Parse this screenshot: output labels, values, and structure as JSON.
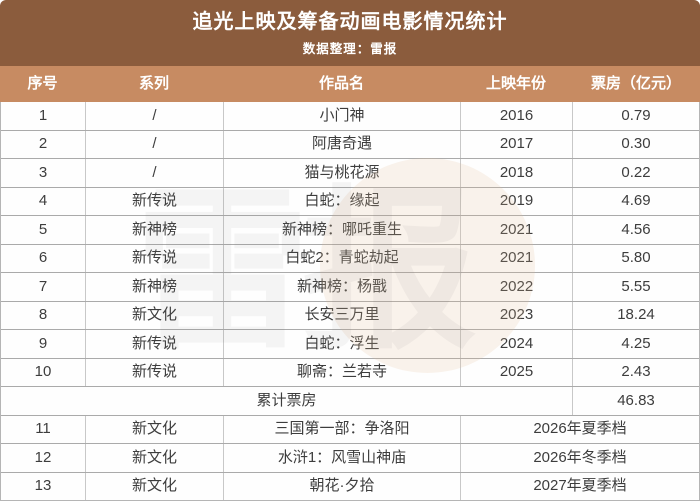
{
  "title": "追光上映及筹备动画电影情况统计",
  "subtitle": "数据整理：雷报",
  "colors": {
    "title_bg": "#8b5c3d",
    "header_bg": "#c78b62",
    "header_text": "#ffffff",
    "body_text": "#3d3d3d",
    "border": "#b5b5b5"
  },
  "columns": [
    "序号",
    "系列",
    "作品名",
    "上映年份",
    "票房（亿元）"
  ],
  "released_rows": [
    {
      "no": "1",
      "series": "/",
      "work": "小门神",
      "year": "2016",
      "box_office": "0.79"
    },
    {
      "no": "2",
      "series": "/",
      "work": "阿唐奇遇",
      "year": "2017",
      "box_office": "0.30"
    },
    {
      "no": "3",
      "series": "/",
      "work": "猫与桃花源",
      "year": "2018",
      "box_office": "0.22"
    },
    {
      "no": "4",
      "series": "新传说",
      "work": "白蛇：缘起",
      "year": "2019",
      "box_office": "4.69"
    },
    {
      "no": "5",
      "series": "新神榜",
      "work": "新神榜：哪吒重生",
      "year": "2021",
      "box_office": "4.56"
    },
    {
      "no": "6",
      "series": "新传说",
      "work": "白蛇2：青蛇劫起",
      "year": "2021",
      "box_office": "5.80"
    },
    {
      "no": "7",
      "series": "新神榜",
      "work": "新神榜：杨戬",
      "year": "2022",
      "box_office": "5.55"
    },
    {
      "no": "8",
      "series": "新文化",
      "work": "长安三万里",
      "year": "2023",
      "box_office": "18.24"
    },
    {
      "no": "9",
      "series": "新传说",
      "work": "白蛇：浮生",
      "year": "2024",
      "box_office": "4.25"
    },
    {
      "no": "10",
      "series": "新传说",
      "work": "聊斋：兰若寺",
      "year": "2025",
      "box_office": "2.43"
    }
  ],
  "total_row": {
    "label": "累计票房",
    "value": "46.83"
  },
  "upcoming_rows": [
    {
      "no": "11",
      "series": "新文化",
      "work": "三国第一部：争洛阳",
      "schedule": "2026年夏季档"
    },
    {
      "no": "12",
      "series": "新文化",
      "work": "水浒1：风雪山神庙",
      "schedule": "2026年冬季档"
    },
    {
      "no": "13",
      "series": "新文化",
      "work": "朝花·夕拾",
      "schedule": "2027年夏季档"
    }
  ],
  "watermark": "雷报"
}
